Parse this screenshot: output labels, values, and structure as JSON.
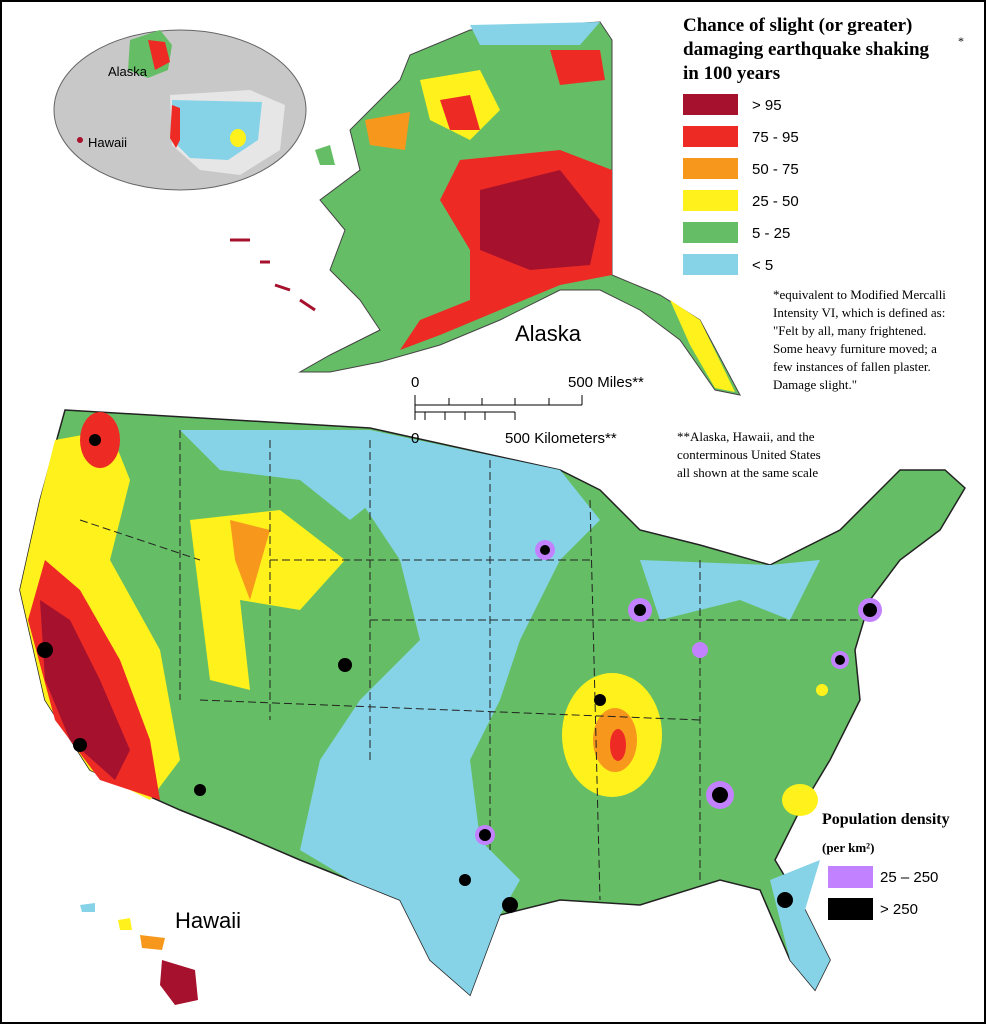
{
  "title": {
    "lines": [
      "Chance of slight (or greater)",
      "damaging earthquake shaking",
      "in 100 years"
    ],
    "marker": "*"
  },
  "legend": {
    "items": [
      {
        "label": "> 95",
        "color": "#a6112e"
      },
      {
        "label": "75 - 95",
        "color": "#ee2a24"
      },
      {
        "label": "50 - 75",
        "color": "#f7981d"
      },
      {
        "label": "25 - 50",
        "color": "#fff21c"
      },
      {
        "label": "5 - 25",
        "color": "#65be65"
      },
      {
        "label": "< 5",
        "color": "#86d3e8"
      }
    ]
  },
  "footnote": [
    "*equivalent to Modified Mercalli",
    "Intensity VI, which is defined as:",
    "\"Felt by all, many frightened.",
    "Some heavy furniture moved; a",
    "few instances of fallen plaster.",
    "Damage slight.\""
  ],
  "map_labels": {
    "alaska": "Alaska",
    "hawaii": "Hawaii"
  },
  "inset_labels": {
    "alaska": "Alaska",
    "hawaii": "Hawaii"
  },
  "scale_bar": {
    "miles_start": "0",
    "miles_end": "500 Miles**",
    "km_start": "0",
    "km_end": "500 Kilometers**"
  },
  "scale_note": [
    "**Alaska, Hawaii, and the",
    "conterminous United States",
    "all shown at the same scale"
  ],
  "population": {
    "title": "Population density",
    "unit": "(per km²)",
    "items": [
      {
        "label": "25 – 250",
        "color": "#c282ff"
      },
      {
        "label": "> 250",
        "color": "#000000"
      }
    ]
  }
}
